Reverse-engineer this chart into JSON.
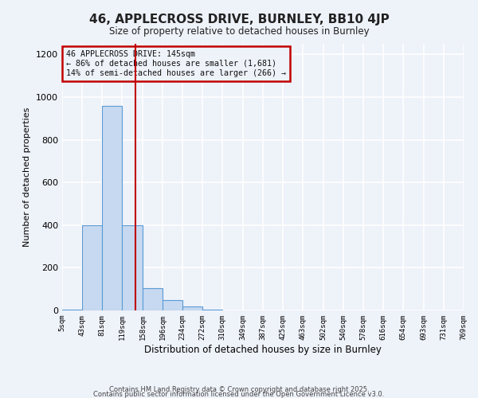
{
  "title": "46, APPLECROSS DRIVE, BURNLEY, BB10 4JP",
  "subtitle": "Size of property relative to detached houses in Burnley",
  "xlabel": "Distribution of detached houses by size in Burnley",
  "ylabel": "Number of detached properties",
  "bin_edges": [
    5,
    43,
    81,
    119,
    158,
    196,
    234,
    272,
    310,
    349,
    387,
    425,
    463,
    502,
    540,
    578,
    616,
    654,
    693,
    731,
    769
  ],
  "bar_heights": [
    5,
    400,
    960,
    400,
    105,
    50,
    20,
    5,
    0,
    0,
    0,
    0,
    0,
    0,
    0,
    0,
    0,
    0,
    0,
    0
  ],
  "bar_color": "#c6d9f0",
  "bar_edge_color": "#5b9bd5",
  "vline_x": 145,
  "vline_color": "#c00000",
  "annotation_line1": "46 APPLECROSS DRIVE: 145sqm",
  "annotation_line2": "← 86% of detached houses are smaller (1,681)",
  "annotation_line3": "14% of semi-detached houses are larger (266) →",
  "annotation_box_edge_color": "#c00000",
  "ylim": [
    0,
    1250
  ],
  "yticks": [
    0,
    200,
    400,
    600,
    800,
    1000,
    1200
  ],
  "tick_labels": [
    "5sqm",
    "43sqm",
    "81sqm",
    "119sqm",
    "158sqm",
    "196sqm",
    "234sqm",
    "272sqm",
    "310sqm",
    "349sqm",
    "387sqm",
    "425sqm",
    "463sqm",
    "502sqm",
    "540sqm",
    "578sqm",
    "616sqm",
    "654sqm",
    "693sqm",
    "731sqm",
    "769sqm"
  ],
  "footer_line1": "Contains HM Land Registry data © Crown copyright and database right 2025.",
  "footer_line2": "Contains public sector information licensed under the Open Government Licence v3.0.",
  "background_color": "#eef2f9",
  "grid_color": "#ffffff"
}
